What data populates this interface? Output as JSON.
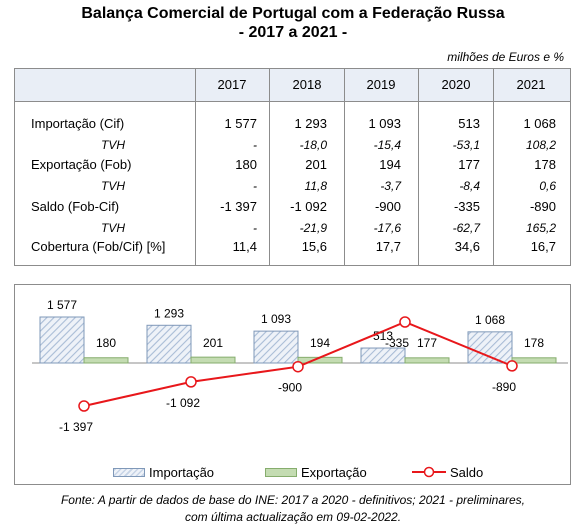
{
  "title": "Balança Comercial de Portugal com a Federação Russa",
  "subtitle": "- 2017 a 2021 -",
  "units": "milhões de Euros e %",
  "table": {
    "years": [
      "2017",
      "2018",
      "2019",
      "2020",
      "2021"
    ],
    "rows": [
      {
        "label": "Importação (Cif)",
        "type": "main",
        "values": [
          "1 577",
          "1 293",
          "1 093",
          "513",
          "1 068"
        ]
      },
      {
        "label": "TVH",
        "type": "sub",
        "values": [
          "-",
          "-18,0",
          "-15,4",
          "-53,1",
          "108,2"
        ]
      },
      {
        "label": "Exportação (Fob)",
        "type": "main",
        "values": [
          "180",
          "201",
          "194",
          "177",
          "178"
        ]
      },
      {
        "label": "TVH",
        "type": "sub",
        "values": [
          "-",
          "11,8",
          "-3,7",
          "-8,4",
          "0,6"
        ]
      },
      {
        "label": "Saldo (Fob-Cif)",
        "type": "main",
        "values": [
          "-1 397",
          "-1 092",
          "-900",
          "-335",
          "-890"
        ]
      },
      {
        "label": "TVH",
        "type": "sub",
        "values": [
          "-",
          "-21,9",
          "-17,6",
          "-62,7",
          "165,2"
        ]
      },
      {
        "label": "Cobertura (Fob/Cif) [%]",
        "type": "main",
        "values": [
          "11,4",
          "15,6",
          "17,7",
          "34,6",
          "16,7"
        ]
      }
    ]
  },
  "chart_data": {
    "type": "bar",
    "categories": [
      "2017",
      "2018",
      "2019",
      "2020",
      "2021"
    ],
    "series": [
      {
        "name": "Importação",
        "kind": "bar",
        "values": [
          1577,
          1293,
          1093,
          513,
          1068
        ],
        "labels": [
          "1 577",
          "1 293",
          "1 093",
          "513",
          "1 068"
        ],
        "color": "#c6d3e6",
        "pattern": "diagonal-hatch"
      },
      {
        "name": "Exportação",
        "kind": "bar",
        "values": [
          180,
          201,
          194,
          177,
          178
        ],
        "labels": [
          "180",
          "201",
          "194",
          "177",
          "178"
        ],
        "color": "#c4dcb2"
      },
      {
        "name": "Saldo",
        "kind": "line",
        "values": [
          -1397,
          -1092,
          -900,
          -335,
          -890
        ],
        "labels": [
          "-1 397",
          "-1 092",
          "-900",
          "-335",
          "-890"
        ],
        "color": "#e8171b",
        "marker": "circle-open"
      }
    ],
    "legend": "bottom",
    "grid": false
  },
  "source_lines": [
    "Fonte: A partir de dados de base do INE: 2017 a 2020 - definitivos; 2021 - preliminares,",
    "com última actualização em 09-02-2022."
  ]
}
